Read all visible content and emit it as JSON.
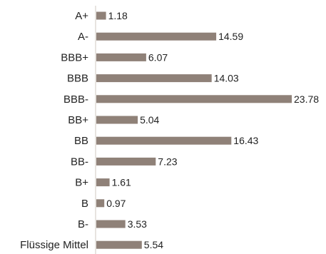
{
  "chart_data": {
    "type": "bar",
    "orientation": "horizontal",
    "categories": [
      "A+",
      "A-",
      "BBB+",
      "BBB",
      "BBB-",
      "BB+",
      "BB",
      "BB-",
      "B+",
      "B",
      "B-",
      "Flüssige Mittel"
    ],
    "values": [
      1.18,
      14.59,
      6.07,
      14.03,
      23.78,
      5.04,
      16.43,
      7.23,
      1.61,
      0.97,
      3.53,
      5.54
    ],
    "value_labels": [
      "1.18",
      "14.59",
      "6.07",
      "14.03",
      "23.78",
      "5.04",
      "16.43",
      "7.23",
      "1.61",
      "0.97",
      "3.53",
      "5.54"
    ],
    "title": "",
    "xlabel": "",
    "ylabel": "",
    "xlim": [
      0,
      23.78
    ],
    "grid": false,
    "legend": "none",
    "bar_color": "#8f8178",
    "axis_color": "#cfc8c2"
  }
}
